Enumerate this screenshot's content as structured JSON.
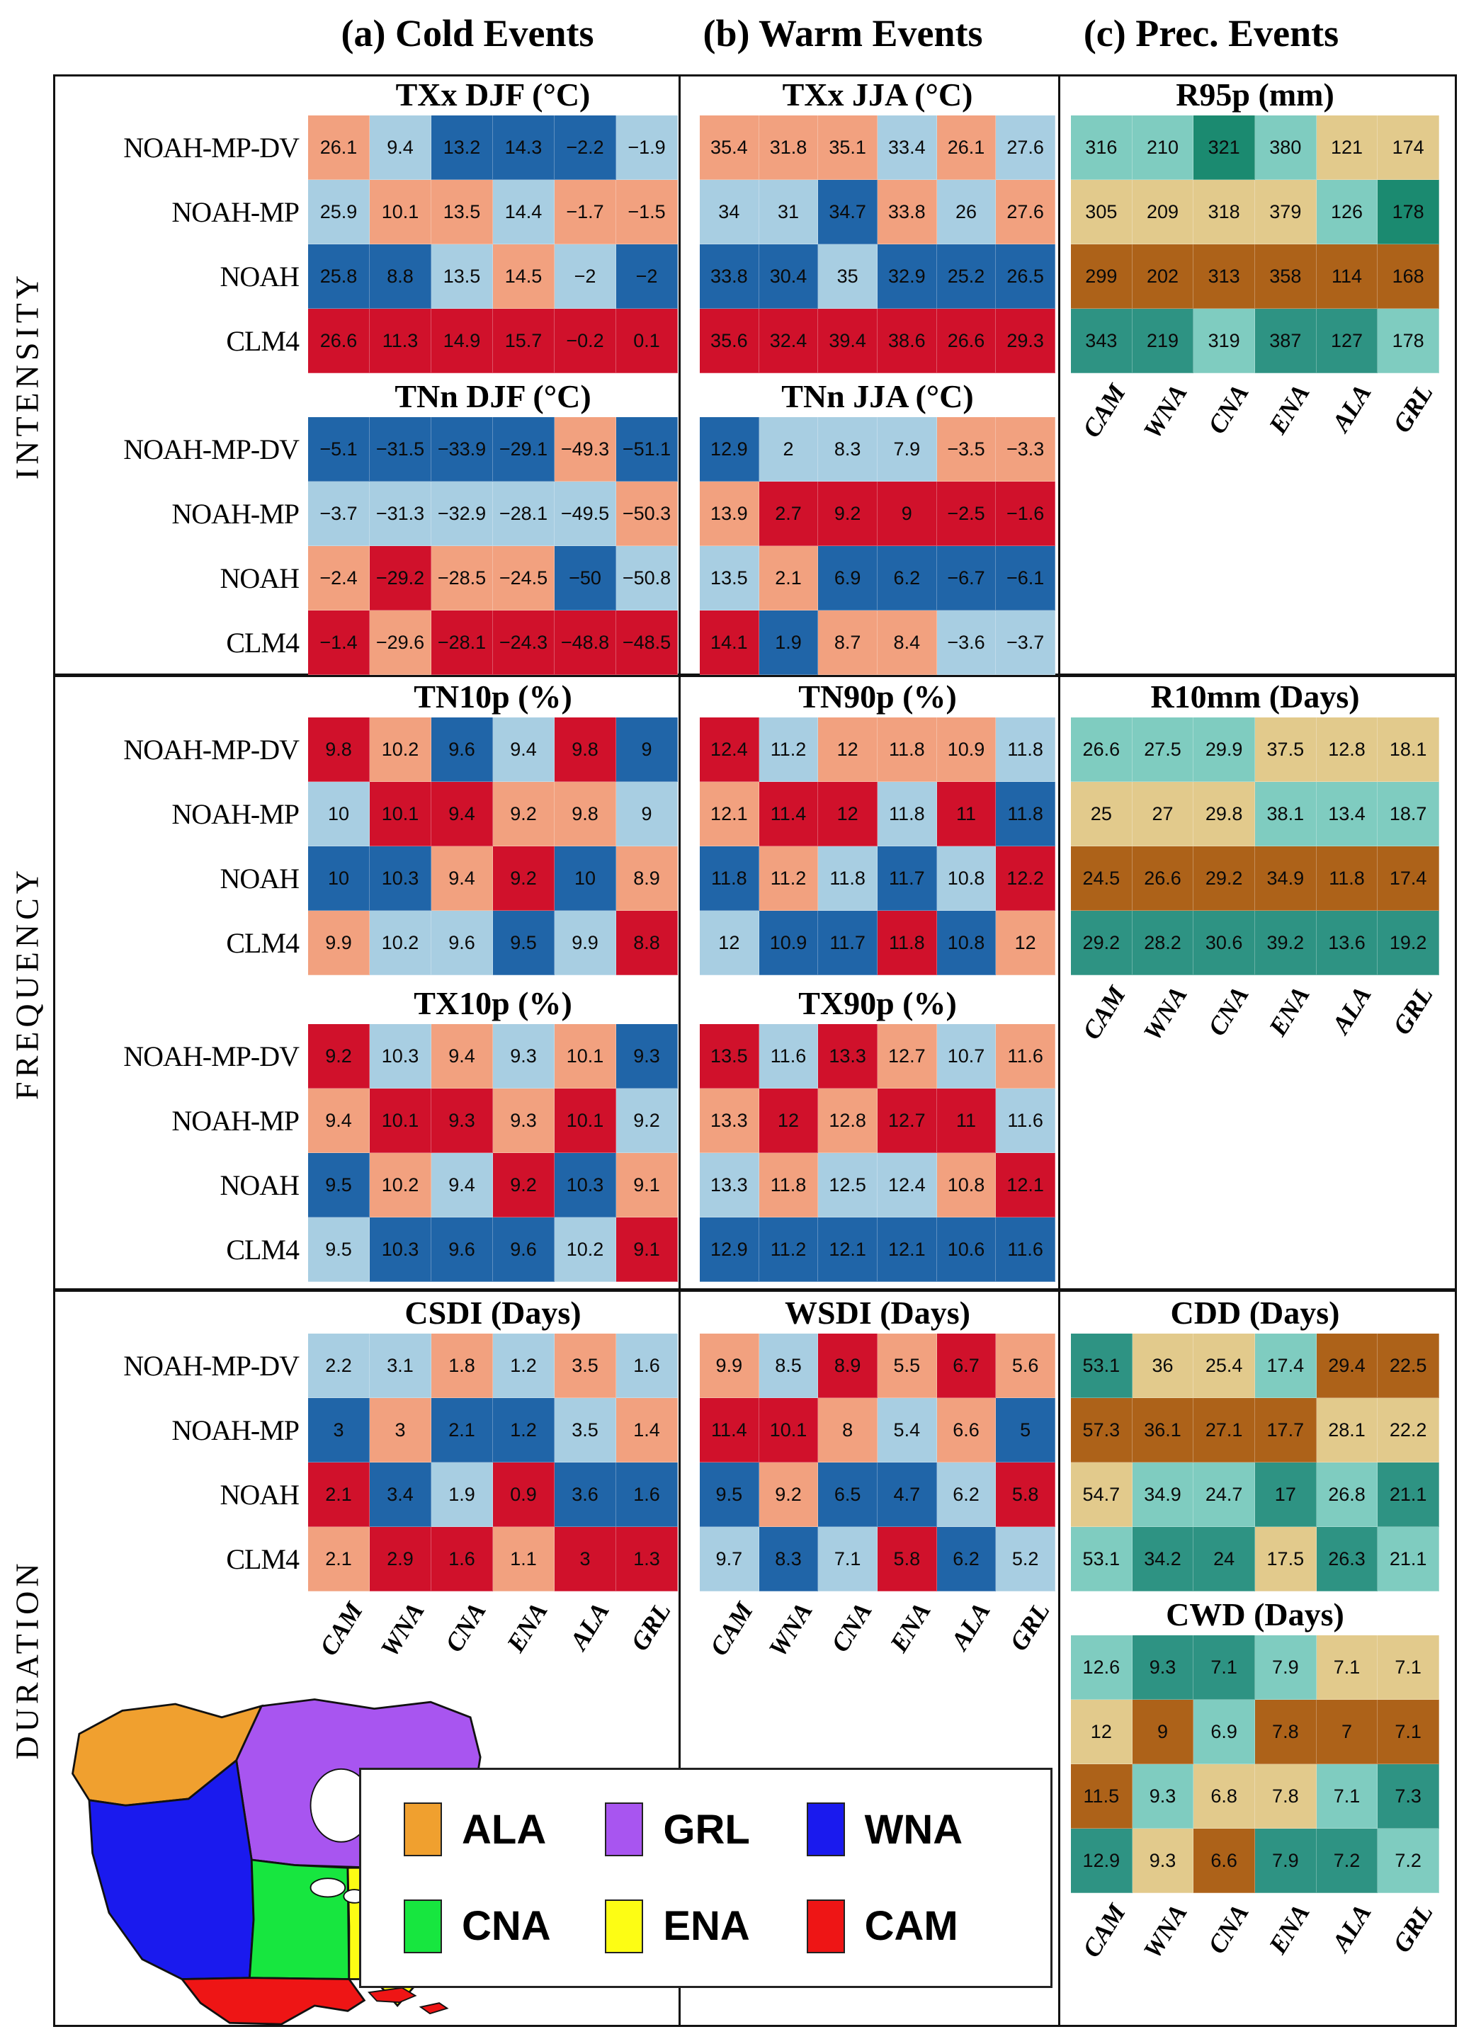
{
  "figure_titles": {
    "a": "(a) Cold Events",
    "b": "(b) Warm Events",
    "c": "(c) Prec. Events"
  },
  "band_labels": {
    "intensity": "INTENSITY",
    "frequency": "FREQUENCY",
    "duration": "DURATION"
  },
  "models": [
    "NOAH-MP-DV",
    "NOAH-MP",
    "NOAH",
    "CLM4"
  ],
  "regions": [
    "CAM",
    "WNA",
    "CNA",
    "ENA",
    "ALA",
    "GRL"
  ],
  "palette": {
    "s": "#F2A17F",
    "l": "#A8CEE2",
    "b": "#2065A8",
    "r": "#D0112B",
    "g": "#7FCCC0",
    "t": "#E2CA8C",
    "n": "#AD6219",
    "d": "#2E9383",
    "D": "#1B8A70"
  },
  "chart_data": [
    {
      "id": "txx_djf",
      "type": "heatmap",
      "title": "TXx DJF (°C)",
      "values": [
        [
          "26.1",
          "9.4",
          "13.2",
          "14.3",
          "−2.2",
          "−1.9"
        ],
        [
          "25.9",
          "10.1",
          "13.5",
          "14.4",
          "−1.7",
          "−1.5"
        ],
        [
          "25.8",
          "8.8",
          "13.5",
          "14.5",
          "−2",
          "−2"
        ],
        [
          "26.6",
          "11.3",
          "14.9",
          "15.7",
          "−0.2",
          "0.1"
        ]
      ],
      "cell_colors": [
        [
          "s",
          "l",
          "b",
          "b",
          "b",
          "l"
        ],
        [
          "l",
          "s",
          "s",
          "l",
          "s",
          "s"
        ],
        [
          "b",
          "b",
          "l",
          "s",
          "l",
          "b"
        ],
        [
          "r",
          "r",
          "r",
          "r",
          "r",
          "r"
        ]
      ]
    },
    {
      "id": "tnn_djf",
      "type": "heatmap",
      "title": "TNn DJF (°C)",
      "values": [
        [
          "−5.1",
          "−31.5",
          "−33.9",
          "−29.1",
          "−49.3",
          "−51.1"
        ],
        [
          "−3.7",
          "−31.3",
          "−32.9",
          "−28.1",
          "−49.5",
          "−50.3"
        ],
        [
          "−2.4",
          "−29.2",
          "−28.5",
          "−24.5",
          "−50",
          "−50.8"
        ],
        [
          "−1.4",
          "−29.6",
          "−28.1",
          "−24.3",
          "−48.8",
          "−48.5"
        ]
      ],
      "cell_colors": [
        [
          "b",
          "b",
          "b",
          "b",
          "s",
          "b"
        ],
        [
          "l",
          "l",
          "l",
          "l",
          "l",
          "s"
        ],
        [
          "s",
          "r",
          "s",
          "s",
          "b",
          "l"
        ],
        [
          "r",
          "s",
          "r",
          "r",
          "r",
          "r"
        ]
      ]
    },
    {
      "id": "txx_jja",
      "type": "heatmap",
      "title": "TXx JJA (°C)",
      "values": [
        [
          "35.4",
          "31.8",
          "35.1",
          "33.4",
          "26.1",
          "27.6"
        ],
        [
          "34",
          "31",
          "34.7",
          "33.8",
          "26",
          "27.6"
        ],
        [
          "33.8",
          "30.4",
          "35",
          "32.9",
          "25.2",
          "26.5"
        ],
        [
          "35.6",
          "32.4",
          "39.4",
          "38.6",
          "26.6",
          "29.3"
        ]
      ],
      "cell_colors": [
        [
          "s",
          "s",
          "s",
          "l",
          "s",
          "l"
        ],
        [
          "l",
          "l",
          "b",
          "s",
          "l",
          "s"
        ],
        [
          "b",
          "b",
          "l",
          "b",
          "b",
          "b"
        ],
        [
          "r",
          "r",
          "r",
          "r",
          "r",
          "r"
        ]
      ]
    },
    {
      "id": "tnn_jja",
      "type": "heatmap",
      "title": "TNn JJA (°C)",
      "values": [
        [
          "12.9",
          "2",
          "8.3",
          "7.9",
          "−3.5",
          "−3.3"
        ],
        [
          "13.9",
          "2.7",
          "9.2",
          "9",
          "−2.5",
          "−1.6"
        ],
        [
          "13.5",
          "2.1",
          "6.9",
          "6.2",
          "−6.7",
          "−6.1"
        ],
        [
          "14.1",
          "1.9",
          "8.7",
          "8.4",
          "−3.6",
          "−3.7"
        ]
      ],
      "cell_colors": [
        [
          "b",
          "l",
          "l",
          "l",
          "s",
          "s"
        ],
        [
          "s",
          "r",
          "r",
          "r",
          "r",
          "r"
        ],
        [
          "l",
          "s",
          "b",
          "b",
          "b",
          "b"
        ],
        [
          "r",
          "b",
          "s",
          "s",
          "l",
          "l"
        ]
      ]
    },
    {
      "id": "r95p",
      "type": "heatmap",
      "title": "R95p (mm)",
      "values": [
        [
          "316",
          "210",
          "321",
          "380",
          "121",
          "174"
        ],
        [
          "305",
          "209",
          "318",
          "379",
          "126",
          "178"
        ],
        [
          "299",
          "202",
          "313",
          "358",
          "114",
          "168"
        ],
        [
          "343",
          "219",
          "319",
          "387",
          "127",
          "178"
        ]
      ],
      "cell_colors": [
        [
          "g",
          "g",
          "D",
          "g",
          "t",
          "t"
        ],
        [
          "t",
          "t",
          "t",
          "t",
          "g",
          "D"
        ],
        [
          "n",
          "n",
          "n",
          "n",
          "n",
          "n"
        ],
        [
          "d",
          "d",
          "g",
          "d",
          "d",
          "g"
        ]
      ]
    },
    {
      "id": "tn10p",
      "type": "heatmap",
      "title": "TN10p (%)",
      "values": [
        [
          "9.8",
          "10.2",
          "9.6",
          "9.4",
          "9.8",
          "9"
        ],
        [
          "10",
          "10.1",
          "9.4",
          "9.2",
          "9.8",
          "9"
        ],
        [
          "10",
          "10.3",
          "9.4",
          "9.2",
          "10",
          "8.9"
        ],
        [
          "9.9",
          "10.2",
          "9.6",
          "9.5",
          "9.9",
          "8.8"
        ]
      ],
      "cell_colors": [
        [
          "r",
          "s",
          "b",
          "l",
          "r",
          "b"
        ],
        [
          "l",
          "r",
          "r",
          "s",
          "s",
          "l"
        ],
        [
          "b",
          "b",
          "s",
          "r",
          "b",
          "s"
        ],
        [
          "s",
          "l",
          "l",
          "b",
          "l",
          "r"
        ]
      ]
    },
    {
      "id": "tx10p",
      "type": "heatmap",
      "title": "TX10p (%)",
      "values": [
        [
          "9.2",
          "10.3",
          "9.4",
          "9.3",
          "10.1",
          "9.3"
        ],
        [
          "9.4",
          "10.1",
          "9.3",
          "9.3",
          "10.1",
          "9.2"
        ],
        [
          "9.5",
          "10.2",
          "9.4",
          "9.2",
          "10.3",
          "9.1"
        ],
        [
          "9.5",
          "10.3",
          "9.6",
          "9.6",
          "10.2",
          "9.1"
        ]
      ],
      "cell_colors": [
        [
          "r",
          "l",
          "s",
          "l",
          "s",
          "b"
        ],
        [
          "s",
          "r",
          "r",
          "s",
          "r",
          "l"
        ],
        [
          "b",
          "s",
          "l",
          "r",
          "b",
          "s"
        ],
        [
          "l",
          "b",
          "b",
          "b",
          "l",
          "r"
        ]
      ]
    },
    {
      "id": "tn90p",
      "type": "heatmap",
      "title": "TN90p (%)",
      "values": [
        [
          "12.4",
          "11.2",
          "12",
          "11.8",
          "10.9",
          "11.8"
        ],
        [
          "12.1",
          "11.4",
          "12",
          "11.8",
          "11",
          "11.8"
        ],
        [
          "11.8",
          "11.2",
          "11.8",
          "11.7",
          "10.8",
          "12.2"
        ],
        [
          "12",
          "10.9",
          "11.7",
          "11.8",
          "10.8",
          "12"
        ]
      ],
      "cell_colors": [
        [
          "r",
          "l",
          "s",
          "s",
          "s",
          "l"
        ],
        [
          "s",
          "r",
          "r",
          "l",
          "r",
          "b"
        ],
        [
          "b",
          "s",
          "l",
          "b",
          "l",
          "r"
        ],
        [
          "l",
          "b",
          "b",
          "r",
          "b",
          "s"
        ]
      ]
    },
    {
      "id": "tx90p",
      "type": "heatmap",
      "title": "TX90p (%)",
      "values": [
        [
          "13.5",
          "11.6",
          "13.3",
          "12.7",
          "10.7",
          "11.6"
        ],
        [
          "13.3",
          "12",
          "12.8",
          "12.7",
          "11",
          "11.6"
        ],
        [
          "13.3",
          "11.8",
          "12.5",
          "12.4",
          "10.8",
          "12.1"
        ],
        [
          "12.9",
          "11.2",
          "12.1",
          "12.1",
          "10.6",
          "11.6"
        ]
      ],
      "cell_colors": [
        [
          "r",
          "l",
          "r",
          "s",
          "l",
          "s"
        ],
        [
          "s",
          "r",
          "s",
          "r",
          "r",
          "l"
        ],
        [
          "l",
          "s",
          "l",
          "l",
          "s",
          "r"
        ],
        [
          "b",
          "b",
          "b",
          "b",
          "b",
          "b"
        ]
      ]
    },
    {
      "id": "r10mm",
      "type": "heatmap",
      "title": "R10mm (Days)",
      "values": [
        [
          "26.6",
          "27.5",
          "29.9",
          "37.5",
          "12.8",
          "18.1"
        ],
        [
          "25",
          "27",
          "29.8",
          "38.1",
          "13.4",
          "18.7"
        ],
        [
          "24.5",
          "26.6",
          "29.2",
          "34.9",
          "11.8",
          "17.4"
        ],
        [
          "29.2",
          "28.2",
          "30.6",
          "39.2",
          "13.6",
          "19.2"
        ]
      ],
      "cell_colors": [
        [
          "g",
          "g",
          "g",
          "t",
          "t",
          "t"
        ],
        [
          "t",
          "t",
          "t",
          "g",
          "g",
          "g"
        ],
        [
          "n",
          "n",
          "n",
          "n",
          "n",
          "n"
        ],
        [
          "d",
          "d",
          "d",
          "d",
          "d",
          "d"
        ]
      ]
    },
    {
      "id": "csdi",
      "type": "heatmap",
      "title": "CSDI (Days)",
      "values": [
        [
          "2.2",
          "3.1",
          "1.8",
          "1.2",
          "3.5",
          "1.6"
        ],
        [
          "3",
          "3",
          "2.1",
          "1.2",
          "3.5",
          "1.4"
        ],
        [
          "2.1",
          "3.4",
          "1.9",
          "0.9",
          "3.6",
          "1.6"
        ],
        [
          "2.1",
          "2.9",
          "1.6",
          "1.1",
          "3",
          "1.3"
        ]
      ],
      "cell_colors": [
        [
          "l",
          "l",
          "s",
          "l",
          "s",
          "l"
        ],
        [
          "b",
          "s",
          "b",
          "b",
          "l",
          "s"
        ],
        [
          "r",
          "b",
          "l",
          "r",
          "b",
          "b"
        ],
        [
          "s",
          "r",
          "r",
          "s",
          "r",
          "r"
        ]
      ]
    },
    {
      "id": "wsdi",
      "type": "heatmap",
      "title": "WSDI (Days)",
      "values": [
        [
          "9.9",
          "8.5",
          "8.9",
          "5.5",
          "6.7",
          "5.6"
        ],
        [
          "11.4",
          "10.1",
          "8",
          "5.4",
          "6.6",
          "5"
        ],
        [
          "9.5",
          "9.2",
          "6.5",
          "4.7",
          "6.2",
          "5.8"
        ],
        [
          "9.7",
          "8.3",
          "7.1",
          "5.8",
          "6.2",
          "5.2"
        ]
      ],
      "cell_colors": [
        [
          "s",
          "l",
          "r",
          "s",
          "r",
          "s"
        ],
        [
          "r",
          "r",
          "s",
          "l",
          "s",
          "b"
        ],
        [
          "b",
          "s",
          "b",
          "b",
          "l",
          "r"
        ],
        [
          "l",
          "b",
          "l",
          "r",
          "b",
          "l"
        ]
      ]
    },
    {
      "id": "cdd",
      "type": "heatmap",
      "title": "CDD (Days)",
      "values": [
        [
          "53.1",
          "36",
          "25.4",
          "17.4",
          "29.4",
          "22.5"
        ],
        [
          "57.3",
          "36.1",
          "27.1",
          "17.7",
          "28.1",
          "22.2"
        ],
        [
          "54.7",
          "34.9",
          "24.7",
          "17",
          "26.8",
          "21.1"
        ],
        [
          "53.1",
          "34.2",
          "24",
          "17.5",
          "26.3",
          "21.1"
        ]
      ],
      "cell_colors": [
        [
          "d",
          "t",
          "t",
          "g",
          "n",
          "n"
        ],
        [
          "n",
          "n",
          "n",
          "n",
          "t",
          "t"
        ],
        [
          "t",
          "g",
          "g",
          "d",
          "g",
          "d"
        ],
        [
          "g",
          "d",
          "d",
          "t",
          "d",
          "g"
        ]
      ]
    },
    {
      "id": "cwd",
      "type": "heatmap",
      "title": "CWD (Days)",
      "values": [
        [
          "12.6",
          "9.3",
          "7.1",
          "7.9",
          "7.1",
          "7.1"
        ],
        [
          "12",
          "9",
          "6.9",
          "7.8",
          "7",
          "7.1"
        ],
        [
          "11.5",
          "9.3",
          "6.8",
          "7.8",
          "7.1",
          "7.3"
        ],
        [
          "12.9",
          "9.3",
          "6.6",
          "7.9",
          "7.2",
          "7.2"
        ]
      ],
      "cell_colors": [
        [
          "g",
          "d",
          "d",
          "g",
          "t",
          "t"
        ],
        [
          "t",
          "n",
          "g",
          "n",
          "n",
          "n"
        ],
        [
          "n",
          "g",
          "t",
          "t",
          "g",
          "d"
        ],
        [
          "d",
          "t",
          "n",
          "d",
          "d",
          "g"
        ]
      ]
    }
  ],
  "legend": {
    "items": [
      {
        "label": "ALA",
        "color": "#F0A02F"
      },
      {
        "label": "GRL",
        "color": "#A855F0"
      },
      {
        "label": "WNA",
        "color": "#1A1AEE"
      },
      {
        "label": "CNA",
        "color": "#17E63F"
      },
      {
        "label": "ENA",
        "color": "#FDFD14"
      },
      {
        "label": "CAM",
        "color": "#EE1515"
      }
    ]
  },
  "map": {
    "region_colors": {
      "ALA": "#F0A02F",
      "GRL": "#A855F0",
      "WNA": "#1A1AEE",
      "CNA": "#17E63F",
      "ENA": "#FDFD14",
      "CAM": "#EE1515"
    }
  }
}
